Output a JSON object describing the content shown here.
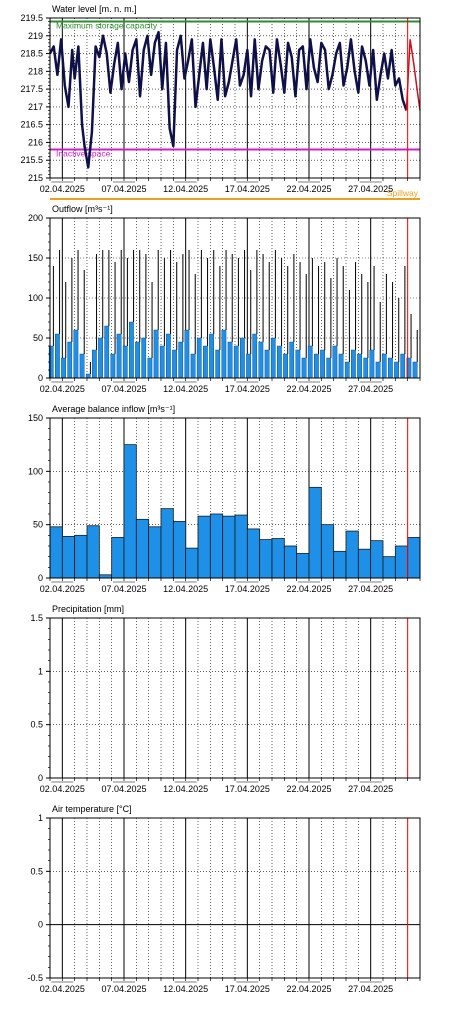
{
  "x_axis": {
    "start_day": 1,
    "end_day": 31,
    "tick_labels": [
      "02.04.2025",
      "07.04.2025",
      "12.04.2025",
      "17.04.2025",
      "22.04.2025",
      "27.04.2025"
    ],
    "tick_days": [
      2,
      7,
      12,
      17,
      22,
      27
    ],
    "current_day": 30
  },
  "colors": {
    "background": "#ffffff",
    "level_line": "#101048",
    "level_forecast": "#cc1020",
    "max_capacity": "#2e8b2e",
    "inactive_space": "#cc22cc",
    "spillway": "#f0a020",
    "bar_fill": "#1e90e8",
    "outflow_line": "#000000",
    "now_line": "#ff0000",
    "grid": "#000000"
  },
  "chart_data": [
    {
      "id": "water-level",
      "type": "line",
      "title": "Water level [m. n. m.]",
      "ylim": [
        215,
        219.5
      ],
      "yticks": [
        215,
        215.5,
        216,
        216.5,
        217,
        217.5,
        218,
        218.5,
        219,
        219.5
      ],
      "ytick_labels": [
        "215",
        "215.5",
        "216",
        "216.5",
        "217",
        "217.5",
        "218",
        "218.5",
        "219",
        "219.5"
      ],
      "reference_lines": [
        {
          "name": "Maximum storage capacity",
          "value": 219.4,
          "color": "#2e8b2e"
        },
        {
          "name": "Inactive space",
          "value": 215.8,
          "color": "#cc22cc"
        }
      ],
      "below_label": {
        "name": "Spillway",
        "color": "#f0a020"
      },
      "x": [
        1.0,
        1.3,
        1.6,
        1.9,
        2.2,
        2.5,
        2.8,
        3.0,
        3.3,
        3.6,
        3.8,
        4.1,
        4.4,
        4.7,
        5.0,
        5.3,
        5.6,
        5.9,
        6.2,
        6.5,
        6.8,
        7.1,
        7.4,
        7.7,
        8.0,
        8.3,
        8.6,
        8.9,
        9.2,
        9.5,
        9.8,
        10.1,
        10.4,
        10.7,
        11.0,
        11.3,
        11.6,
        11.9,
        12.2,
        12.5,
        12.8,
        13.1,
        13.4,
        13.7,
        14.0,
        14.3,
        14.6,
        14.9,
        15.2,
        15.5,
        15.8,
        16.1,
        16.4,
        16.7,
        17.0,
        17.3,
        17.6,
        17.9,
        18.2,
        18.5,
        18.8,
        19.1,
        19.4,
        19.7,
        20.0,
        20.3,
        20.6,
        20.9,
        21.2,
        21.5,
        21.8,
        22.1,
        22.4,
        22.7,
        23.0,
        23.3,
        23.6,
        23.9,
        24.2,
        24.5,
        24.8,
        25.1,
        25.4,
        25.7,
        26.0,
        26.3,
        26.6,
        26.9,
        27.2,
        27.5,
        27.8,
        28.1,
        28.4,
        28.7,
        29.0,
        29.3,
        29.6,
        29.9
      ],
      "y": [
        218.5,
        218.7,
        217.9,
        218.9,
        217.6,
        217.0,
        218.6,
        217.8,
        218.7,
        216.5,
        215.9,
        215.3,
        216.3,
        218.7,
        218.4,
        219.0,
        218.5,
        217.4,
        218.2,
        218.8,
        217.5,
        218.5,
        217.7,
        218.6,
        218.9,
        217.3,
        218.6,
        219.0,
        217.9,
        218.8,
        219.1,
        217.5,
        218.8,
        216.4,
        215.9,
        218.6,
        219.0,
        217.8,
        218.3,
        218.9,
        217.0,
        217.9,
        218.8,
        217.5,
        218.9,
        218.1,
        217.2,
        218.9,
        217.3,
        217.7,
        218.3,
        218.9,
        217.6,
        217.9,
        218.6,
        217.3,
        218.9,
        217.5,
        218.3,
        218.7,
        218.6,
        217.4,
        218.9,
        218.2,
        217.4,
        218.8,
        218.4,
        217.3,
        218.6,
        218.7,
        217.5,
        218.9,
        218.1,
        217.7,
        218.8,
        218.6,
        217.5,
        217.9,
        218.5,
        218.8,
        217.6,
        218.1,
        218.9,
        218.0,
        217.4,
        218.7,
        218.3,
        217.6,
        218.6,
        217.2,
        217.9,
        218.5,
        217.8,
        218.6,
        217.6,
        217.8,
        217.2,
        216.9
      ],
      "forecast_x": [
        29.9,
        30.2,
        30.5,
        30.8,
        31.0
      ],
      "forecast_y": [
        216.9,
        218.9,
        218.2,
        217.4,
        216.9
      ]
    },
    {
      "id": "outflow",
      "type": "bar",
      "title": "Outflow [m³s⁻¹]",
      "ylim": [
        0,
        200
      ],
      "yticks": [
        0,
        50,
        100,
        150,
        200
      ],
      "ytick_labels": [
        "0",
        "50",
        "100",
        "150",
        "200"
      ],
      "bar_width_days": 0.35,
      "x": [
        1.1,
        1.6,
        2.1,
        2.6,
        3.1,
        3.6,
        4.1,
        4.6,
        5.1,
        5.6,
        6.1,
        6.6,
        7.1,
        7.6,
        8.1,
        8.6,
        9.1,
        9.6,
        10.1,
        10.6,
        11.1,
        11.6,
        12.1,
        12.6,
        13.1,
        13.6,
        14.1,
        14.6,
        15.1,
        15.6,
        16.1,
        16.6,
        17.1,
        17.6,
        18.1,
        18.6,
        19.1,
        19.6,
        20.1,
        20.6,
        21.1,
        21.6,
        22.1,
        22.6,
        23.1,
        23.6,
        24.1,
        24.6,
        25.1,
        25.6,
        26.1,
        26.6,
        27.1,
        27.6,
        28.1,
        28.6,
        29.1,
        29.6,
        30.1,
        30.6
      ],
      "values": [
        40,
        55,
        25,
        45,
        60,
        30,
        5,
        35,
        50,
        65,
        30,
        55,
        40,
        70,
        45,
        50,
        25,
        60,
        40,
        55,
        35,
        45,
        60,
        30,
        50,
        40,
        55,
        35,
        60,
        45,
        40,
        50,
        30,
        55,
        45,
        35,
        50,
        40,
        30,
        45,
        35,
        25,
        40,
        30,
        35,
        25,
        40,
        30,
        20,
        35,
        30,
        25,
        35,
        20,
        30,
        25,
        20,
        30,
        25,
        20
      ],
      "peaks": [
        140,
        160,
        120,
        150,
        160,
        135,
        20,
        155,
        160,
        160,
        145,
        160,
        150,
        160,
        160,
        155,
        120,
        160,
        150,
        160,
        145,
        155,
        160,
        130,
        160,
        150,
        160,
        140,
        160,
        155,
        150,
        160,
        135,
        160,
        155,
        145,
        160,
        150,
        140,
        155,
        145,
        130,
        150,
        140,
        145,
        125,
        150,
        140,
        110,
        145,
        130,
        120,
        140,
        95,
        130,
        120,
        100,
        140,
        80,
        60
      ]
    },
    {
      "id": "balance-inflow",
      "type": "bar",
      "title": "Average balance inflow  [m³s⁻¹]",
      "ylim": [
        0,
        150
      ],
      "yticks": [
        0,
        50,
        100,
        150
      ],
      "ytick_labels": [
        "0",
        "50",
        "100",
        "150"
      ],
      "x": [
        1,
        2,
        3,
        4,
        5,
        6,
        7,
        8,
        9,
        10,
        11,
        12,
        13,
        14,
        15,
        16,
        17,
        18,
        19,
        20,
        21,
        22,
        23,
        24,
        25,
        26,
        27,
        28,
        29,
        30
      ],
      "values": [
        48,
        39,
        40,
        49,
        3,
        38,
        125,
        55,
        48,
        65,
        53,
        28,
        58,
        60,
        58,
        59,
        46,
        36,
        37,
        30,
        23,
        85,
        50,
        25,
        44,
        27,
        35,
        20,
        30,
        38
      ]
    },
    {
      "id": "precipitation",
      "type": "bar",
      "title": "Precipitation [mm]",
      "ylim": [
        0,
        1.5
      ],
      "yticks": [
        0,
        0.5,
        1,
        1.5
      ],
      "ytick_labels": [
        "0",
        "0.5",
        "1",
        "1.5"
      ],
      "values": []
    },
    {
      "id": "air-temperature",
      "type": "line",
      "title": "Air temperature [°C]",
      "ylim": [
        -0.5,
        1
      ],
      "yticks": [
        -0.5,
        0,
        0.5,
        1
      ],
      "ytick_labels": [
        "-0.5",
        "0",
        "0.5",
        "1"
      ],
      "values": []
    }
  ]
}
